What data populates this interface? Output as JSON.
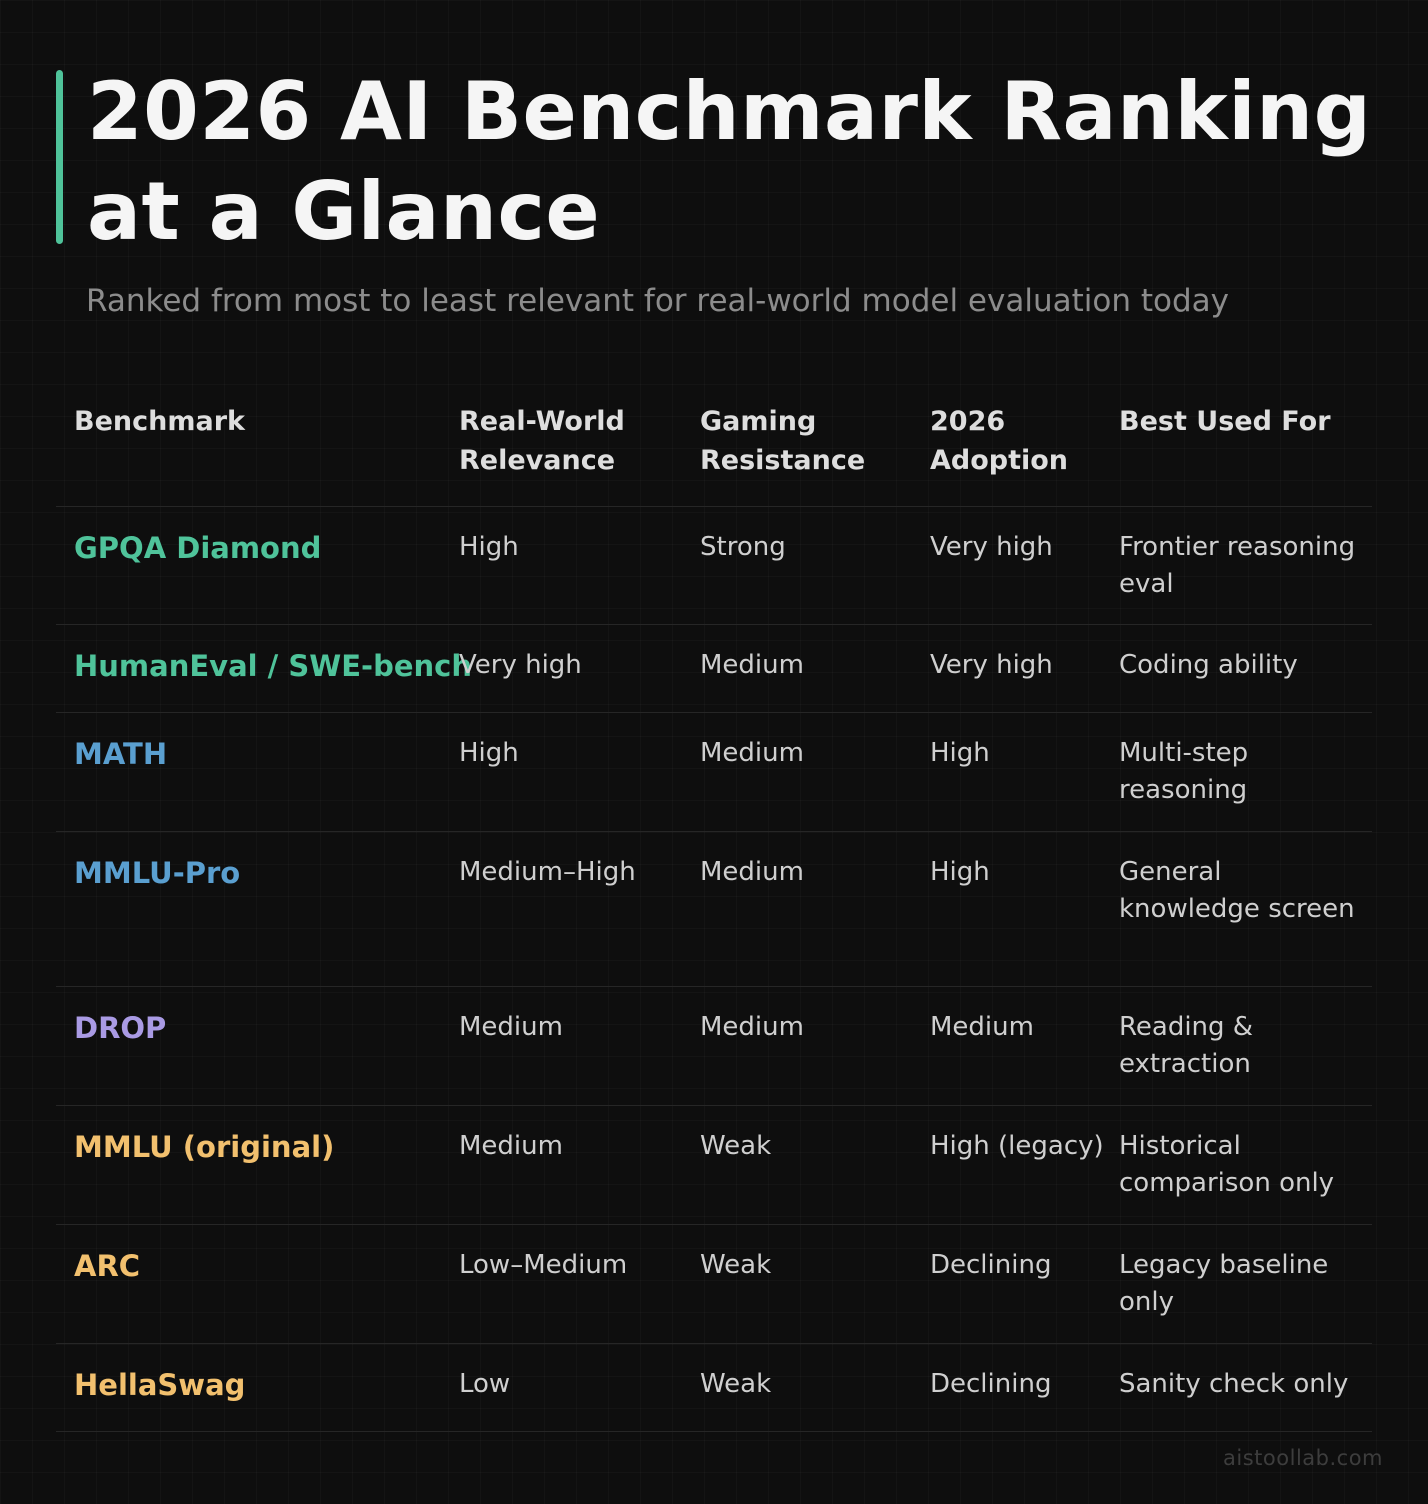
{
  "title": "2026 AI Benchmark Ranking at a Glance",
  "subtitle": "Ranked from most to least relevant for real-world model evaluation today",
  "accent_color": "#4fc39a",
  "table": {
    "headers": [
      "Benchmark",
      "Real-World Relevance",
      "Gaming Resistance",
      "2026 Adoption",
      "Best Used For"
    ],
    "rows": [
      {
        "benchmark": "GPQA Diamond",
        "relevance": "High",
        "gaming_resistance": "Strong",
        "adoption": "Very high",
        "best_used_for": "Frontier reasoning eval",
        "color": "#4fc39a"
      },
      {
        "benchmark": "HumanEval / SWE-bench",
        "relevance": "Very high",
        "gaming_resistance": "Medium",
        "adoption": "Very high",
        "best_used_for": "Coding ability",
        "color": "#4fc39a"
      },
      {
        "benchmark": "MATH",
        "relevance": "High",
        "gaming_resistance": "Medium",
        "adoption": "High",
        "best_used_for": "Multi-step reasoning",
        "color": "#5a9fd0"
      },
      {
        "benchmark": "MMLU-Pro",
        "relevance": "Medium–High",
        "gaming_resistance": "Medium",
        "adoption": "High",
        "best_used_for": "General knowledge screen",
        "color": "#5a9fd0"
      },
      {
        "benchmark": "DROP",
        "relevance": "Medium",
        "gaming_resistance": "Medium",
        "adoption": "Medium",
        "best_used_for": "Reading & extraction",
        "color": "#a99ae4"
      },
      {
        "benchmark": "MMLU (original)",
        "relevance": "Medium",
        "gaming_resistance": "Weak",
        "adoption": "High (legacy)",
        "best_used_for": "Historical comparison only",
        "color": "#f2c06e"
      },
      {
        "benchmark": "ARC",
        "relevance": "Low–Medium",
        "gaming_resistance": "Weak",
        "adoption": "Declining",
        "best_used_for": "Legacy baseline only",
        "color": "#f2c06e"
      },
      {
        "benchmark": "HellaSwag",
        "relevance": "Low",
        "gaming_resistance": "Weak",
        "adoption": "Declining",
        "best_used_for": "Sanity check only",
        "color": "#f2c06e"
      }
    ]
  },
  "watermark": "aistoollab.com"
}
